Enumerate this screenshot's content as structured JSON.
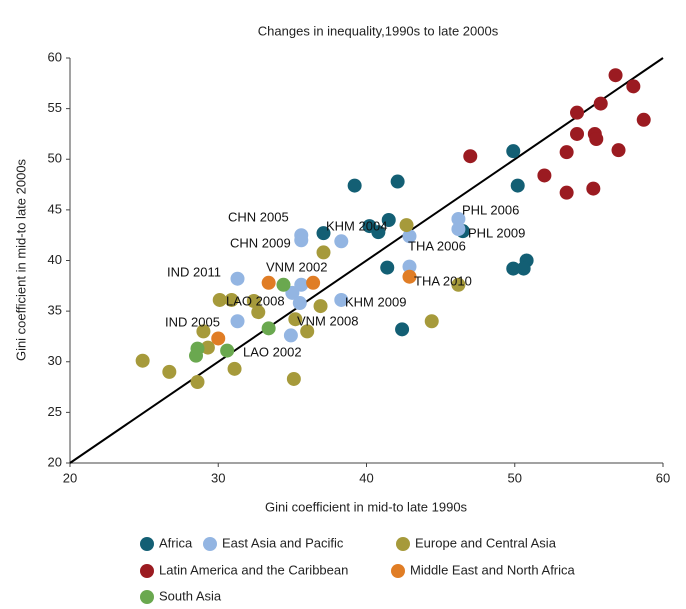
{
  "chart_data": {
    "type": "scatter",
    "title": "Changes in inequality,1990s to late 2000s",
    "xlabel": "Gini coefficient in mid-to late 1990s",
    "ylabel": "Gini coefficient in mid-to late 2000s",
    "xlim": [
      20,
      60
    ],
    "ylim": [
      20,
      60
    ],
    "xticks": [
      20,
      30,
      40,
      50,
      60
    ],
    "yticks": [
      20,
      25,
      30,
      35,
      40,
      45,
      50,
      55,
      60
    ],
    "grid": false,
    "series": [
      {
        "name": "Africa",
        "color": "#135f74",
        "x": [
          39.2,
          42.1,
          40.2,
          41.5,
          40.8,
          37.1,
          41.4,
          42.4,
          49.9,
          50.2,
          46.5,
          50.8,
          49.9,
          50.6
        ],
        "values": [
          47.4,
          47.8,
          43.4,
          44.0,
          42.8,
          42.7,
          39.3,
          33.2,
          50.8,
          47.4,
          42.9,
          40.0,
          39.2,
          39.2
        ]
      },
      {
        "name": "East Asia and Pacific",
        "color": "#93b5e2",
        "x": [
          46.2,
          46.2,
          35.6,
          35.6,
          38.3,
          42.9,
          42.9,
          31.3,
          35.6,
          35.0,
          35.5,
          38.3,
          31.3,
          34.9
        ],
        "values": [
          44.1,
          43.1,
          42.5,
          42.0,
          41.9,
          42.4,
          39.4,
          38.2,
          37.6,
          36.8,
          35.8,
          36.1,
          34.0,
          32.6
        ]
      },
      {
        "name": "Europe and Central Asia",
        "color": "#a69a3b",
        "x": [
          37.1,
          42.7,
          30.1,
          30.9,
          32.4,
          32.7,
          36.9,
          46.2,
          44.4,
          35.2,
          36.0,
          29.0,
          29.3,
          24.9,
          26.7,
          31.1,
          28.6,
          35.1
        ],
        "values": [
          40.8,
          43.5,
          36.1,
          36.1,
          36.0,
          34.9,
          35.5,
          37.6,
          34.0,
          34.2,
          33.0,
          33.0,
          31.4,
          30.1,
          29.0,
          29.3,
          28.0,
          28.3
        ]
      },
      {
        "name": "Latin America and the Caribbean",
        "color": "#9b1b21",
        "x": [
          56.8,
          58.0,
          55.8,
          54.2,
          54.2,
          55.4,
          55.5,
          58.7,
          47.0,
          53.5,
          57.0,
          52.0,
          53.5,
          55.3
        ],
        "values": [
          58.3,
          57.2,
          55.5,
          54.6,
          52.5,
          52.5,
          52.0,
          53.9,
          50.3,
          50.7,
          50.9,
          48.4,
          46.7,
          47.1
        ]
      },
      {
        "name": "Middle East and North Africa",
        "color": "#e07d25",
        "x": [
          33.4,
          36.4,
          42.9,
          30.0
        ],
        "values": [
          37.8,
          37.8,
          38.4,
          32.3
        ]
      },
      {
        "name": "South Asia",
        "color": "#6aa84f",
        "x": [
          34.4,
          33.4,
          28.6,
          28.5,
          30.6
        ],
        "values": [
          37.6,
          33.3,
          31.3,
          30.6,
          31.1
        ]
      }
    ],
    "annotations": [
      "CHN 2005",
      "KHM 2004",
      "PHL 2006",
      "CHN 2009",
      "PHL 2009",
      "THA 2006",
      "IND 2011",
      "VNM 2002",
      "THA 2010",
      "LAO 2008",
      "KHM 2009",
      "IND 2005",
      "VNM 2008",
      "LAO 2002"
    ]
  }
}
